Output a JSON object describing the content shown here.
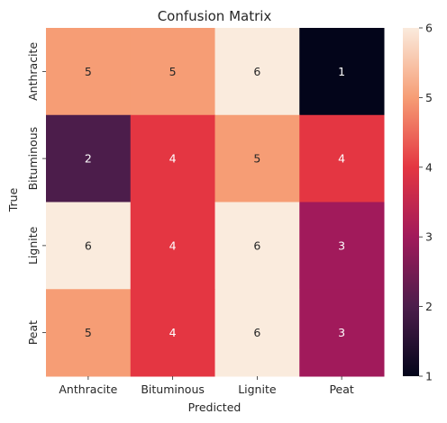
{
  "chart_data": {
    "type": "heatmap",
    "title": "Confusion Matrix",
    "xlabel": "Predicted",
    "ylabel": "True",
    "x_categories": [
      "Anthracite",
      "Bituminous",
      "Lignite",
      "Peat"
    ],
    "y_categories": [
      "Anthracite",
      "Bituminous",
      "Lignite",
      "Peat"
    ],
    "values": [
      [
        5,
        5,
        6,
        1
      ],
      [
        2,
        4,
        5,
        4
      ],
      [
        6,
        4,
        6,
        3
      ],
      [
        5,
        4,
        6,
        3
      ]
    ],
    "colorbar": {
      "min": 1,
      "max": 6,
      "ticks": [
        "1",
        "2",
        "3",
        "4",
        "5",
        "6"
      ]
    },
    "colormap": "rocket"
  }
}
